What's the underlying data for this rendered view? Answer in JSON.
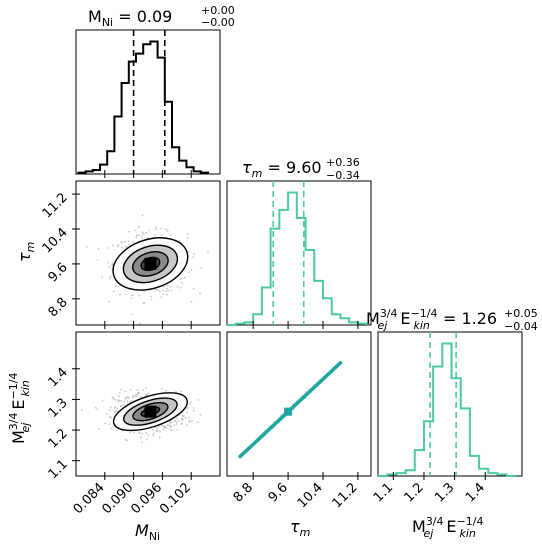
{
  "chart_data": {
    "type": "corner",
    "colors": {
      "panel1": "#000000",
      "panel2": "#4dc9a2",
      "panel3": "#4dc9a2",
      "scatter_line": "#1fa6a0",
      "density_fill": "#555555"
    },
    "titles": {
      "p1": {
        "lhs": "M",
        "sub": "Ni",
        "value": "0.09",
        "plus": "+0.00",
        "minus": "−0.00"
      },
      "p2": {
        "lhs": "τ",
        "sub": "m",
        "value": "9.60",
        "plus": "+0.36",
        "minus": "−0.34"
      },
      "p3": {
        "value": "1.26",
        "plus": "+0.05",
        "minus": "−0.04"
      }
    },
    "axes": {
      "M_Ni": {
        "label": "M",
        "sub": "Ni",
        "range": [
          0.078,
          0.108
        ],
        "ticks": [
          "0.084",
          "0.090",
          "0.096",
          "0.102"
        ]
      },
      "tau_m": {
        "label": "τ",
        "sub": "m",
        "range": [
          8.2,
          11.5
        ],
        "ticks": [
          "8.8",
          "9.6",
          "10.4",
          "11.2"
        ]
      },
      "Mej_Ekin": {
        "label": "M",
        "label_sup": "3/4",
        "label_sub": "ej",
        "label2": "E",
        "label2_sup": "−1/4",
        "label2_sub": "kin",
        "range": [
          1.05,
          1.52
        ],
        "ticks": [
          "1.1",
          "1.2",
          "1.3",
          "1.4"
        ]
      }
    },
    "hist_M_Ni": {
      "bin_edges": [
        0.0785,
        0.08,
        0.0815,
        0.083,
        0.0845,
        0.086,
        0.0875,
        0.089,
        0.0905,
        0.092,
        0.0935,
        0.095,
        0.0965,
        0.098,
        0.0995,
        0.101,
        0.1025,
        0.104,
        0.1055
      ],
      "counts": [
        1,
        2,
        3,
        7,
        17,
        43,
        68,
        84,
        90,
        97,
        99,
        87,
        54,
        20,
        10,
        5,
        2,
        1
      ],
      "quantiles": [
        0.09,
        0.0965
      ]
    },
    "hist_tau_m": {
      "bin_edges": [
        8.2,
        8.4,
        8.6,
        8.8,
        9.0,
        9.2,
        9.4,
        9.6,
        9.8,
        10.0,
        10.2,
        10.4,
        10.6,
        10.8,
        11.0,
        11.2,
        11.4
      ],
      "counts": [
        0,
        1,
        2,
        8,
        28,
        72,
        86,
        99,
        80,
        56,
        33,
        20,
        8,
        5,
        2,
        1
      ],
      "quantiles": [
        9.26,
        9.96
      ]
    },
    "hist_Mej_Ekin": {
      "bin_edges": [
        1.05,
        1.08,
        1.11,
        1.14,
        1.17,
        1.2,
        1.23,
        1.26,
        1.29,
        1.32,
        1.35,
        1.38,
        1.41,
        1.44,
        1.47,
        1.5
      ],
      "counts": [
        0,
        1,
        2,
        4,
        18,
        38,
        76,
        92,
        68,
        47,
        14,
        5,
        2,
        1,
        0
      ],
      "quantiles": [
        1.22,
        1.305
      ]
    },
    "joint_M_tau": {
      "center": [
        0.0935,
        9.6
      ],
      "contours": [
        {
          "rx": 0.002,
          "ry": 0.14
        },
        {
          "rx": 0.0038,
          "ry": 0.26
        },
        {
          "rx": 0.0058,
          "ry": 0.4
        },
        {
          "rx": 0.008,
          "ry": 0.56
        }
      ],
      "spread": [
        0.0038,
        0.34
      ]
    },
    "joint_M_mej": {
      "center": [
        0.0935,
        1.26
      ],
      "contours": [
        {
          "rx": 0.002,
          "ry": 0.012
        },
        {
          "rx": 0.0038,
          "ry": 0.024
        },
        {
          "rx": 0.0058,
          "ry": 0.036
        },
        {
          "rx": 0.008,
          "ry": 0.05
        }
      ],
      "spread": [
        0.0038,
        0.032
      ]
    },
    "joint_tau_mej": {
      "slope": 0.133,
      "intercept": -0.017,
      "center": [
        9.6,
        1.26
      ],
      "tau_range": [
        8.5,
        10.8
      ]
    }
  }
}
